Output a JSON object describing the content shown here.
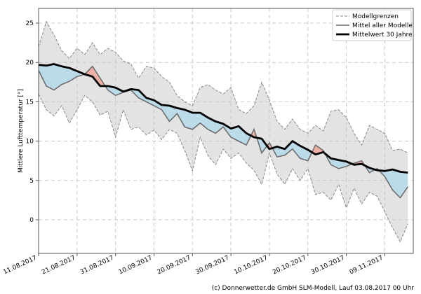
{
  "chart_data": {
    "type": "line",
    "title": "",
    "xlabel": "",
    "ylabel": "Mittlere Lufttemperatur [°]",
    "x_start": "2017-08-11",
    "x_step_days": 2,
    "x_range_days": [
      0,
      97.4
    ],
    "ylim": [
      -4.27,
      26.87
    ],
    "yticks": [
      0,
      5,
      10,
      15,
      20,
      25
    ],
    "xtick_labels": [
      "11.08.2017",
      "21.08.2017",
      "31.08.2017",
      "10.09.2017",
      "20.09.2017",
      "30.09.2017",
      "10.10.2017",
      "20.10.2017",
      "30.10.2017",
      "09.11.2017"
    ],
    "grid": true,
    "legend_position": "top-right",
    "legend": [
      "Modellgrenzen",
      "Mittel aller Modelle",
      "Mittelwert 30 Jahre"
    ],
    "series": [
      {
        "name": "Mittelwert 30 Jahre",
        "color": "#000000",
        "values": [
          19.7,
          19.6,
          19.8,
          19.5,
          19.3,
          18.9,
          18.5,
          18.2,
          17.0,
          17.0,
          16.8,
          16.3,
          16.6,
          16.5,
          15.5,
          15.2,
          14.6,
          14.5,
          14.2,
          14.0,
          13.6,
          13.6,
          13.0,
          12.5,
          12.2,
          11.6,
          11.9,
          11.0,
          10.5,
          10.3,
          9.0,
          9.3,
          9.0,
          10.0,
          9.4,
          8.9,
          8.3,
          8.6,
          7.8,
          7.6,
          7.4,
          7.0,
          7.1,
          6.6,
          6.3,
          6.2,
          6.4,
          6.1,
          6.0
        ]
      },
      {
        "name": "Mittel aller Modelle",
        "color": "#777777",
        "values": [
          19.0,
          17.0,
          16.5,
          17.2,
          17.6,
          18.2,
          18.5,
          19.5,
          18.0,
          16.5,
          15.8,
          16.2,
          16.5,
          15.5,
          15.0,
          14.5,
          14.0,
          12.5,
          13.5,
          11.8,
          11.5,
          12.3,
          11.5,
          11.0,
          11.8,
          10.5,
          10.0,
          9.5,
          11.5,
          8.5,
          9.8,
          8.0,
          8.2,
          9.0,
          7.8,
          7.5,
          9.5,
          8.8,
          7.0,
          6.5,
          6.8,
          7.2,
          7.5,
          6.0,
          6.5,
          5.5,
          3.8,
          2.8,
          4.2
        ]
      },
      {
        "name": "Modellgrenzen",
        "bound": "upper",
        "color": "#999999",
        "values": [
          22,
          25.2,
          23.5,
          21.5,
          20.5,
          21.8,
          21.0,
          22.5,
          21.0,
          21.8,
          21.3,
          20.2,
          19.8,
          18.0,
          19.5,
          19.3,
          18.2,
          17.5,
          15.8,
          15.0,
          14.5,
          16.8,
          17.2,
          16.5,
          16.0,
          16.8,
          14.0,
          13.5,
          14.5,
          17.5,
          15.2,
          12.5,
          11.5,
          12.8,
          11.5,
          11.0,
          12.0,
          11.3,
          13.8,
          14.0,
          13.0,
          11.0,
          9.5,
          12.0,
          11.5,
          11.0,
          8.8,
          9.0,
          8.5
        ]
      },
      {
        "name": "Modellgrenzen",
        "bound": "lower",
        "color": "#999999",
        "values": [
          16.0,
          14.0,
          13.2,
          14.5,
          12.3,
          14.0,
          15.8,
          15.0,
          13.3,
          13.8,
          10.5,
          14.0,
          11.5,
          11.8,
          10.8,
          11.4,
          10.2,
          11.5,
          11.0,
          8.8,
          6.2,
          10.5,
          8.2,
          7.0,
          9.0,
          7.8,
          8.5,
          7.2,
          6.3,
          4.5,
          8.5,
          5.8,
          4.5,
          6.5,
          5.0,
          6.5,
          3.2,
          3.5,
          2.5,
          4.5,
          1.5,
          4.0,
          2.0,
          3.5,
          3.0,
          1.0,
          -1.0,
          -2.8,
          -0.5
        ]
      }
    ],
    "colors": {
      "range_fill": "#e3e3e3",
      "below_fill": "#bcdbe9",
      "above_fill": "#eeb2a6"
    }
  },
  "credit": "(c) Donnerwetter.de GmbH SLM-Modell, Lauf 03.08.2017 00 Uhr"
}
